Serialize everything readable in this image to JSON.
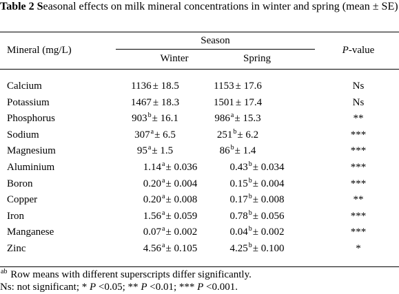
{
  "caption": {
    "label": "Table 2 S",
    "text": "easonal effects on milk mineral concentrations in winter and spring (mean ± SE)"
  },
  "header": {
    "mineral": "Mineral (mg/L)",
    "season": "Season",
    "winter": "Winter",
    "spring": "Spring",
    "p_italic": "P",
    "p_rest": "-value"
  },
  "rows": [
    {
      "mineral": "Calcium",
      "winter_mean": "1136",
      "winter_sup": "",
      "winter_se": "± 18.5",
      "spring_mean": "1153",
      "spring_sup": "",
      "spring_se": "± 17.6",
      "p": "Ns"
    },
    {
      "mineral": "Potassium",
      "winter_mean": "1467",
      "winter_sup": "",
      "winter_se": "± 18.3",
      "spring_mean": "1501",
      "spring_sup": "",
      "spring_se": "± 17.4",
      "p": "Ns"
    },
    {
      "mineral": "Phosphorus",
      "winter_mean": "903",
      "winter_sup": "b",
      "winter_se": "± 16.1",
      "spring_mean": "986",
      "spring_sup": "a",
      "spring_se": "± 15.3",
      "p": "**"
    },
    {
      "mineral": "Sodium",
      "winter_mean": "307",
      "winter_sup": "a",
      "winter_se": "± 6.5",
      "spring_mean": "251",
      "spring_sup": "b",
      "spring_se": "± 6.2",
      "p": "***"
    },
    {
      "mineral": "Magnesium",
      "winter_mean": "95",
      "winter_sup": "a",
      "winter_se": "± 1.5",
      "spring_mean": "86",
      "spring_sup": "b",
      "spring_se": "± 1.4",
      "p": "***"
    },
    {
      "mineral": "Aluminium",
      "winter_mean": "1.14",
      "winter_sup": "a",
      "winter_se": "± 0.036",
      "spring_mean": "0.43",
      "spring_sup": "b",
      "spring_se": "± 0.034",
      "p": "***"
    },
    {
      "mineral": "Boron",
      "winter_mean": "0.20",
      "winter_sup": "a",
      "winter_se": "± 0.004",
      "spring_mean": "0.15",
      "spring_sup": "b",
      "spring_se": "± 0.004",
      "p": "***"
    },
    {
      "mineral": "Copper",
      "winter_mean": "0.20",
      "winter_sup": "a",
      "winter_se": "± 0.008",
      "spring_mean": "0.17",
      "spring_sup": "b",
      "spring_se": "± 0.008",
      "p": "**"
    },
    {
      "mineral": "Iron",
      "winter_mean": "1.56",
      "winter_sup": "a",
      "winter_se": "± 0.059",
      "spring_mean": "0.78",
      "spring_sup": "b",
      "spring_se": "± 0.056",
      "p": "***"
    },
    {
      "mineral": "Manganese",
      "winter_mean": "0.07",
      "winter_sup": "a",
      "winter_se": "± 0.002",
      "spring_mean": "0.04",
      "spring_sup": "b",
      "spring_se": "± 0.002",
      "p": "***"
    },
    {
      "mineral": "Zinc",
      "winter_mean": "4.56",
      "winter_sup": "a",
      "winter_se": "± 0.105",
      "spring_mean": "4.25",
      "spring_sup": "b",
      "spring_se": "± 0.100",
      "p": "*"
    }
  ],
  "footnotes": {
    "sup_marker": "ab",
    "line1": " Row means with different superscripts differ significantly.",
    "line2_parts": [
      {
        "text": "Ns:  not significant; * ",
        "italic": false
      },
      {
        "text": "P",
        "italic": true
      },
      {
        "text": " <0.05; ** ",
        "italic": false
      },
      {
        "text": "P",
        "italic": true
      },
      {
        "text": " <0.01; *** ",
        "italic": false
      },
      {
        "text": "P",
        "italic": true
      },
      {
        "text": " <0.001.",
        "italic": false
      }
    ]
  }
}
